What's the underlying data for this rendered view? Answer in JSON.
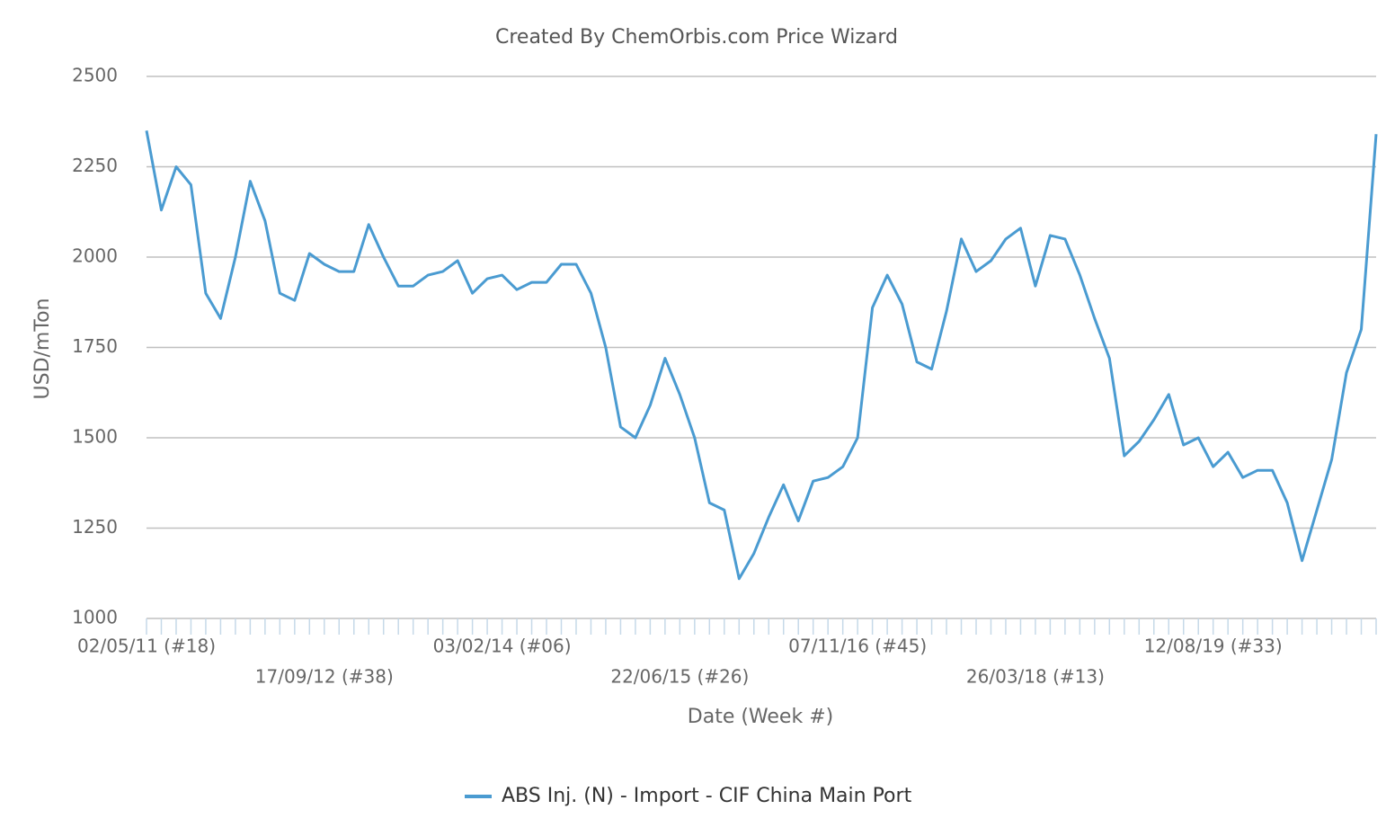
{
  "chart_data": {
    "type": "line",
    "title": "Created By ChemOrbis.com Price Wizard",
    "x_label": "Date (Week #)",
    "y_label": "USD/mTon",
    "categories": [
      "02/05/11 (#18)",
      null,
      null,
      null,
      null,
      null,
      null,
      null,
      null,
      null,
      null,
      null,
      "17/09/12 (#38)",
      null,
      null,
      null,
      null,
      null,
      null,
      null,
      null,
      null,
      null,
      null,
      "03/02/14 (#06)",
      null,
      null,
      null,
      null,
      null,
      null,
      null,
      null,
      null,
      null,
      null,
      "22/06/15 (#26)",
      null,
      null,
      null,
      null,
      null,
      null,
      null,
      null,
      null,
      null,
      null,
      "07/11/16 (#45)",
      null,
      null,
      null,
      null,
      null,
      null,
      null,
      null,
      null,
      null,
      null,
      "26/03/18 (#13)",
      null,
      null,
      null,
      null,
      null,
      null,
      null,
      null,
      null,
      null,
      null,
      "12/08/19 (#33)",
      null,
      null,
      null,
      null,
      null,
      null,
      null,
      null,
      null,
      null,
      null
    ],
    "series": [
      {
        "name": "ABS Inj. (N) - Import - CIF China Main Port",
        "color": "#4a9bd1",
        "values": [
          2350,
          2130,
          2250,
          2200,
          1900,
          1830,
          2000,
          2210,
          2100,
          1900,
          1880,
          2010,
          1980,
          1960,
          1960,
          2090,
          2000,
          1920,
          1920,
          1950,
          1960,
          1990,
          1900,
          1940,
          1950,
          1910,
          1930,
          1930,
          1980,
          1980,
          1900,
          1750,
          1530,
          1500,
          1590,
          1720,
          1620,
          1500,
          1320,
          1300,
          1110,
          1180,
          1280,
          1370,
          1270,
          1380,
          1390,
          1420,
          1500,
          1860,
          1950,
          1870,
          1710,
          1690,
          1850,
          2050,
          1960,
          1990,
          2050,
          2080,
          1920,
          2060,
          2050,
          1950,
          1830,
          1720,
          1450,
          1490,
          1550,
          1620,
          1480,
          1500,
          1420,
          1460,
          1390,
          1410,
          1410,
          1320,
          1160,
          1300,
          1440,
          1680,
          1800,
          2340
        ]
      }
    ],
    "ylim": [
      1000,
      2500
    ],
    "yticks": [
      1000,
      1250,
      1500,
      1750,
      2000,
      2250,
      2500
    ],
    "grid": true,
    "legend": "bottom"
  }
}
